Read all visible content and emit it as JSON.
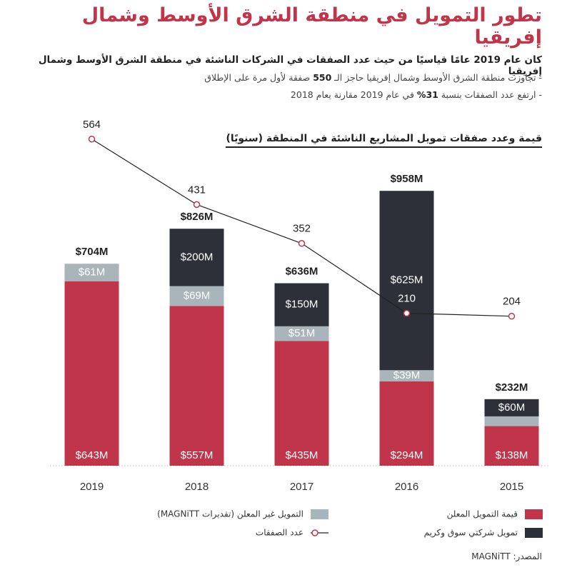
{
  "title": "تطور التمويل في منطقة الشرق الأوسط وشمال إفريقيا",
  "subtitle": "كان عام 2019 عامًا قياسيًا من حيث عدد الصفقات في الشركات الناشئة في منطقة الشرق الأوسط وشمال إفريقيا",
  "bullets": [
    [
      "- تجاوزت منطقة الشرق الأوسط وشمال إفريقيا حاجز الـ ",
      "550",
      " صفقة لأول مرة على الإطلاق"
    ],
    [
      "- ارتفع عدد الصفقات بنسبة ",
      "31%",
      " في عام 2019 مقارنة بعام 2018"
    ]
  ],
  "source": "المصدر: MAGNiTT",
  "chart_data": {
    "type": "bar",
    "stacked": true,
    "title": "قيمة وعدد صفقات تمويل المشاريع الناشئة في المنطقة (سنويًا)",
    "categories": [
      "2019",
      "2018",
      "2017",
      "2016",
      "2015"
    ],
    "ylim": [
      0,
      1200
    ],
    "y2lim": [
      -100,
      600
    ],
    "series": [
      {
        "name": "قيمة التمويل المعلن",
        "color": "#c0354a",
        "values": [
          643,
          557,
          435,
          294,
          138
        ],
        "value_labels": [
          "$643M",
          "$557M",
          "$435M",
          "$294M",
          "$138M"
        ]
      },
      {
        "name": "التمويل غير المعلن (تقديرات MAGNiTT)",
        "color": "#a9b5ba",
        "values": [
          61,
          69,
          51,
          39,
          34
        ],
        "value_labels": [
          "$61M",
          "$69M",
          "$51M",
          "$39M",
          null
        ]
      },
      {
        "name": "تمويل شركتي سوق وكريم",
        "color": "#2e3039",
        "values": [
          null,
          200,
          150,
          625,
          60
        ],
        "value_labels": [
          null,
          "$200M",
          "$150M",
          "$625M",
          "$60M"
        ]
      },
      {
        "name": "عدد الصفقات",
        "type": "line",
        "axis": "y2",
        "color": "#c0354a",
        "values": [
          564,
          431,
          352,
          210,
          204
        ]
      }
    ],
    "totals": {
      "values": [
        704,
        826,
        636,
        958,
        232
      ],
      "value_labels": [
        "$704M",
        "$826M",
        "$636M",
        "$958M",
        "$232M"
      ]
    }
  }
}
